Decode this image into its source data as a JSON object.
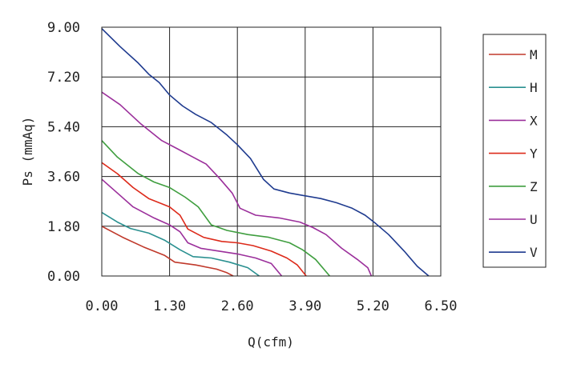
{
  "chart_data": {
    "type": "line",
    "title": "",
    "xlabel": "Q(cfm)",
    "ylabel": "Ps (mmAq)",
    "xlim": [
      0,
      6.5
    ],
    "ylim": [
      0,
      9
    ],
    "grid": true,
    "legend_position": "right",
    "x_ticks": [
      "0.00",
      "1.30",
      "2.60",
      "3.90",
      "5.20",
      "6.50"
    ],
    "y_ticks": [
      "0.00",
      "1.80",
      "3.60",
      "5.40",
      "7.20",
      "9.00"
    ],
    "series": [
      {
        "name": "M",
        "color": "#c0392b",
        "points": [
          [
            0,
            1.8
          ],
          [
            0.4,
            1.4
          ],
          [
            0.8,
            1.05
          ],
          [
            1.2,
            0.75
          ],
          [
            1.4,
            0.5
          ],
          [
            1.8,
            0.4
          ],
          [
            2.2,
            0.25
          ],
          [
            2.4,
            0.12
          ],
          [
            2.52,
            0
          ]
        ]
      },
      {
        "name": "H",
        "color": "#2a9090",
        "points": [
          [
            0,
            2.3
          ],
          [
            0.3,
            1.95
          ],
          [
            0.55,
            1.72
          ],
          [
            0.9,
            1.55
          ],
          [
            1.2,
            1.3
          ],
          [
            1.5,
            0.95
          ],
          [
            1.75,
            0.7
          ],
          [
            2.1,
            0.65
          ],
          [
            2.45,
            0.5
          ],
          [
            2.8,
            0.3
          ],
          [
            3.02,
            0
          ]
        ]
      },
      {
        "name": "X",
        "color": "#9b2f9b",
        "points": [
          [
            0,
            3.5
          ],
          [
            0.3,
            3.0
          ],
          [
            0.6,
            2.5
          ],
          [
            1.0,
            2.1
          ],
          [
            1.3,
            1.85
          ],
          [
            1.5,
            1.6
          ],
          [
            1.65,
            1.2
          ],
          [
            1.9,
            1.0
          ],
          [
            2.25,
            0.9
          ],
          [
            2.6,
            0.8
          ],
          [
            2.95,
            0.65
          ],
          [
            3.25,
            0.45
          ],
          [
            3.45,
            0
          ]
        ]
      },
      {
        "name": "Y",
        "color": "#dd2a1a",
        "points": [
          [
            0,
            4.1
          ],
          [
            0.3,
            3.7
          ],
          [
            0.6,
            3.2
          ],
          [
            0.9,
            2.8
          ],
          [
            1.3,
            2.5
          ],
          [
            1.5,
            2.2
          ],
          [
            1.65,
            1.7
          ],
          [
            1.95,
            1.4
          ],
          [
            2.3,
            1.25
          ],
          [
            2.6,
            1.2
          ],
          [
            2.9,
            1.1
          ],
          [
            3.25,
            0.9
          ],
          [
            3.55,
            0.65
          ],
          [
            3.75,
            0.4
          ],
          [
            3.92,
            0
          ]
        ]
      },
      {
        "name": "Z",
        "color": "#3f9e3f",
        "points": [
          [
            0,
            4.9
          ],
          [
            0.3,
            4.3
          ],
          [
            0.7,
            3.7
          ],
          [
            1.0,
            3.4
          ],
          [
            1.3,
            3.2
          ],
          [
            1.6,
            2.85
          ],
          [
            1.85,
            2.5
          ],
          [
            2.1,
            1.85
          ],
          [
            2.4,
            1.65
          ],
          [
            2.8,
            1.5
          ],
          [
            3.2,
            1.4
          ],
          [
            3.6,
            1.2
          ],
          [
            3.85,
            0.95
          ],
          [
            4.1,
            0.6
          ],
          [
            4.37,
            0
          ]
        ]
      },
      {
        "name": "U",
        "color": "#9b2f9b",
        "points": [
          [
            0,
            6.65
          ],
          [
            0.35,
            6.2
          ],
          [
            0.75,
            5.5
          ],
          [
            1.15,
            4.9
          ],
          [
            1.45,
            4.6
          ],
          [
            1.75,
            4.3
          ],
          [
            2.0,
            4.05
          ],
          [
            2.25,
            3.55
          ],
          [
            2.5,
            3.0
          ],
          [
            2.65,
            2.45
          ],
          [
            2.95,
            2.2
          ],
          [
            3.4,
            2.1
          ],
          [
            3.8,
            1.95
          ],
          [
            4.05,
            1.75
          ],
          [
            4.3,
            1.5
          ],
          [
            4.6,
            1.0
          ],
          [
            4.9,
            0.6
          ],
          [
            5.1,
            0.3
          ],
          [
            5.17,
            0
          ]
        ]
      },
      {
        "name": "V",
        "color": "#1f3b8f",
        "points": [
          [
            0,
            8.95
          ],
          [
            0.35,
            8.3
          ],
          [
            0.7,
            7.7
          ],
          [
            0.9,
            7.3
          ],
          [
            1.1,
            7.0
          ],
          [
            1.3,
            6.55
          ],
          [
            1.55,
            6.15
          ],
          [
            1.8,
            5.85
          ],
          [
            2.1,
            5.55
          ],
          [
            2.4,
            5.1
          ],
          [
            2.6,
            4.75
          ],
          [
            2.85,
            4.25
          ],
          [
            3.1,
            3.5
          ],
          [
            3.3,
            3.15
          ],
          [
            3.6,
            3.0
          ],
          [
            3.9,
            2.9
          ],
          [
            4.2,
            2.8
          ],
          [
            4.5,
            2.65
          ],
          [
            4.8,
            2.45
          ],
          [
            5.05,
            2.2
          ],
          [
            5.25,
            1.9
          ],
          [
            5.5,
            1.5
          ],
          [
            5.8,
            0.9
          ],
          [
            6.05,
            0.35
          ],
          [
            6.27,
            0
          ]
        ]
      }
    ]
  }
}
